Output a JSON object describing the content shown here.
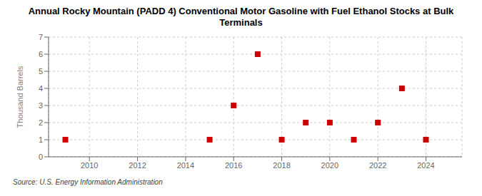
{
  "chart_data": {
    "type": "scatter",
    "title": "Annual Rocky Mountain (PADD 4) Conventional Motor Gasoline with Fuel Ethanol Stocks at Bulk\nTerminals",
    "ylabel": "Thousand Barrels",
    "annotations": [
      "Source: U.S. Energy Information Administration"
    ],
    "x": [
      2009,
      2015,
      2016,
      2017,
      2018,
      2019,
      2020,
      2021,
      2022,
      2023,
      2024
    ],
    "values": [
      1,
      1,
      3,
      6,
      1,
      2,
      2,
      1,
      2,
      4,
      1
    ],
    "color": "#cc0000",
    "marker": "square",
    "xlim": [
      2008.3,
      2025.5
    ],
    "ylim": [
      0,
      7
    ],
    "xticks": [
      2010,
      2012,
      2014,
      2016,
      2018,
      2020,
      2022,
      2024
    ],
    "yticks": [
      0,
      1,
      2,
      3,
      4,
      5,
      6,
      7
    ],
    "grid": true
  }
}
